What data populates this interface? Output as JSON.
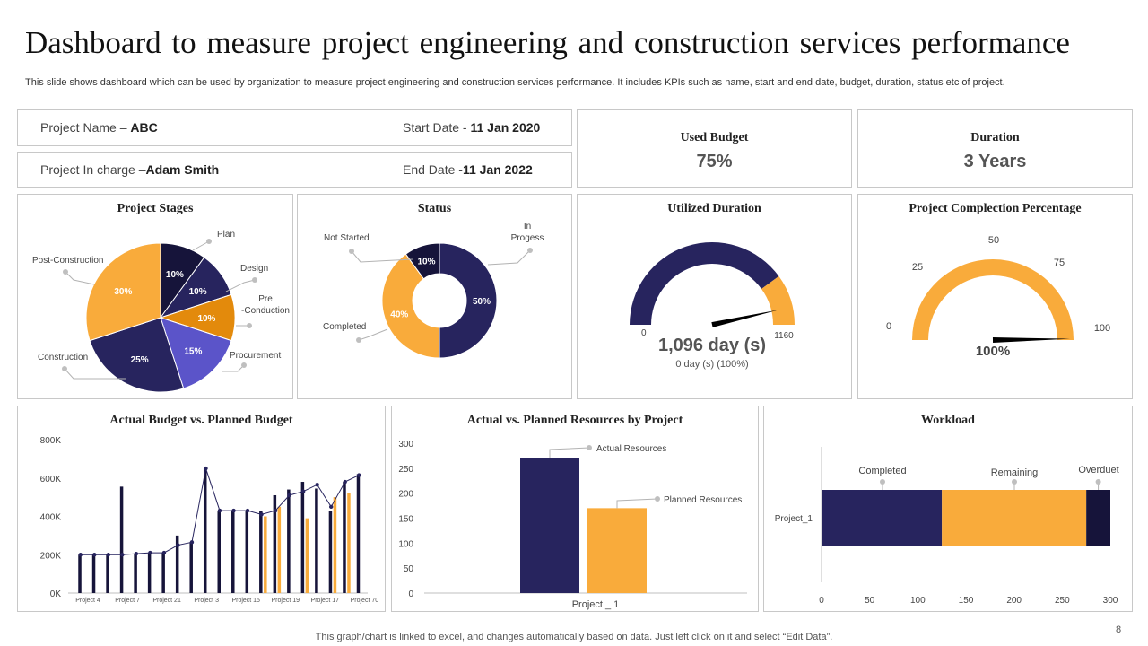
{
  "title": "Dashboard to measure project engineering and construction services performance",
  "subtitle": "This slide shows dashboard which can be used by organization to measure project engineering and construction services performance. It includes KPIs such as name, start and end date, budget, duration,  status etc of project.",
  "project_info": {
    "name_label": "Project Name – ",
    "name_value": "ABC",
    "start_label": "Start Date - ",
    "start_value": "11 Jan 2020",
    "incharge_label": "Project In charge –",
    "incharge_value": "Adam  Smith",
    "end_label": "End Date -",
    "end_value": "11 Jan 2022"
  },
  "kpis": {
    "used_budget": {
      "label": "Used Budget",
      "value": "75%"
    },
    "duration": {
      "label": "Duration",
      "value": "3 Years"
    }
  },
  "colors": {
    "navy": "#27245e",
    "dark_navy": "#16143a",
    "orange": "#f9ab3b",
    "dark_orange": "#e38a0c",
    "purple": "#5b54c9",
    "grey_line": "#b3b3b3",
    "grey_dot": "#bfbfbf"
  },
  "footer": "This graph/chart is linked to excel,  and changes automatically based on data. Just left click on it and select “Edit Data”.",
  "page_number": "8",
  "chart_data": [
    {
      "id": "project_stages",
      "type": "pie",
      "title": "Project Stages",
      "slices": [
        {
          "name": "Plan",
          "value": 10,
          "label": "10%",
          "color": "#16143a"
        },
        {
          "name": "Design",
          "value": 10,
          "label": "10%",
          "color": "#27245e"
        },
        {
          "name": "Pre -Conduction",
          "value": 10,
          "label": "10%",
          "color": "#e38a0c"
        },
        {
          "name": "Procurement",
          "value": 15,
          "label": "15%",
          "color": "#5b54c9"
        },
        {
          "name": "Construction",
          "value": 25,
          "label": "25%",
          "color": "#27245e"
        },
        {
          "name": "Post-Construction",
          "value": 30,
          "label": "30%",
          "color": "#f9ab3b"
        }
      ]
    },
    {
      "id": "status",
      "type": "pie",
      "title": "Status",
      "slices": [
        {
          "name": "In Progess",
          "value": 50,
          "label": "50%",
          "color": "#27245e"
        },
        {
          "name": "Completed",
          "value": 40,
          "label": "40%",
          "color": "#f9ab3b"
        },
        {
          "name": "Not Started",
          "value": 10,
          "label": "10%",
          "color": "#16143a"
        }
      ]
    },
    {
      "id": "utilized_duration",
      "type": "gauge",
      "title": "Utilized Duration",
      "min": 0,
      "max": 1160,
      "value": 1096,
      "value_text": "1,096 day (s)",
      "sub_text": "0 day (s) (100%)",
      "min_label": "0",
      "max_label": "1160"
    },
    {
      "id": "completion_percentage",
      "type": "gauge",
      "title": "Project Complection Percentage",
      "min": 0,
      "max": 100,
      "value": 100,
      "value_text": "100%",
      "ticks": [
        "0",
        "25",
        "50",
        "75",
        "100"
      ]
    },
    {
      "id": "actual_vs_planned_budget",
      "type": "bar",
      "title": "Actual Budget vs. Planned Budget",
      "ylim": [
        0,
        800
      ],
      "yticks": [
        "0K",
        "200K",
        "400K",
        "600K",
        "800K"
      ],
      "xtick_labels": [
        "Project 4",
        "Project 7",
        "Project 21",
        "Project 3",
        "Project 15",
        "Project 19",
        "Project 17",
        "Project 70"
      ],
      "series": [
        {
          "kind": "bar",
          "color": "#16143a",
          "values": [
            200,
            200,
            200,
            555,
            205,
            210,
            210,
            300,
            265,
            650,
            430,
            430,
            430,
            430,
            510,
            540,
            580,
            545,
            430,
            580,
            620
          ]
        },
        {
          "kind": "bar",
          "color": "#f9ab3b",
          "values": [
            null,
            null,
            null,
            null,
            null,
            null,
            null,
            null,
            null,
            null,
            null,
            null,
            null,
            400,
            450,
            null,
            390,
            null,
            500,
            520,
            null
          ]
        },
        {
          "kind": "line",
          "color": "#27245e",
          "values": [
            200,
            200,
            200,
            200,
            205,
            210,
            210,
            250,
            265,
            650,
            430,
            430,
            430,
            410,
            430,
            510,
            530,
            565,
            450,
            580,
            615
          ]
        }
      ]
    },
    {
      "id": "resources",
      "type": "bar",
      "title": "Actual vs. Planned Resources by Project",
      "categories": [
        "Project _ 1"
      ],
      "ylim": [
        0,
        300
      ],
      "yticks": [
        "0",
        "50",
        "100",
        "150",
        "200",
        "250",
        "300"
      ],
      "series": [
        {
          "name": "Actual Resources",
          "values": [
            270
          ],
          "color": "#27245e"
        },
        {
          "name": "Planned Resources",
          "values": [
            170
          ],
          "color": "#f9ab3b"
        }
      ]
    },
    {
      "id": "workload",
      "type": "bar",
      "orientation": "horizontal",
      "title": "Workload",
      "categories": [
        "Project_1"
      ],
      "xlim": [
        0,
        300
      ],
      "xticks": [
        "0",
        "50",
        "100",
        "150",
        "200",
        "250",
        "300"
      ],
      "series": [
        {
          "name": "Completed",
          "values": [
            125
          ],
          "color": "#27245e"
        },
        {
          "name": "Remaining",
          "values": [
            150
          ],
          "color": "#f9ab3b"
        },
        {
          "name": "Overduet",
          "values": [
            25
          ],
          "color": "#16143a"
        }
      ]
    }
  ]
}
